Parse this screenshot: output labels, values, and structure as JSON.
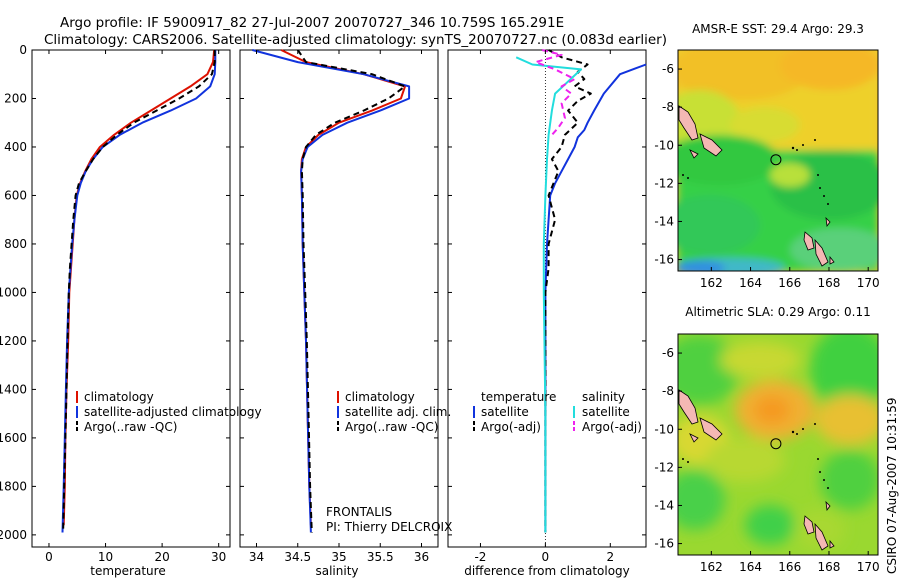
{
  "header": {
    "line1": "Argo profile: IF 5900917_82 27-Jul-2007 20070727_346 10.759S 165.291E",
    "line2": "Climatology: CARS2006. Satellite-adjusted climatology: synTS_20070727.nc (0.083d earlier)"
  },
  "side_label": "CSIRO 07-Aug-2007 10:31:59",
  "colors": {
    "clim": "#dd1100",
    "sat": "#1133dd",
    "argo": "#000000",
    "sal_sat": "#22dddd",
    "sal_argo": "#ee22ee",
    "coast": "#f4b8b4",
    "ring": "#000000"
  },
  "profile_panels": {
    "ylim": [
      2050,
      0
    ],
    "yticks": [
      0,
      200,
      400,
      600,
      800,
      1000,
      1200,
      1400,
      1600,
      1800,
      2000
    ],
    "temperature": {
      "xlabel": "temperature",
      "xlim": [
        -3,
        32
      ],
      "xticks": [
        0,
        10,
        20,
        30
      ],
      "legend": [
        "climatology",
        "satellite-adjusted climatology",
        "Argo(..raw -QC)"
      ]
    },
    "salinity": {
      "xlabel": "salinity",
      "xlim": [
        33.8,
        36.2
      ],
      "xticks": [
        "34",
        "34.5",
        "35",
        "35.5",
        "36"
      ],
      "legend": [
        "climatology",
        "satellite adj. clim.",
        "Argo(..raw -QC)"
      ],
      "frontalis": "FRONTALIS",
      "pi": "PI: Thierry DELCROIX"
    },
    "difference": {
      "xlabel": "difference from climatology",
      "xlim": [
        -3,
        3.1
      ],
      "xticks": [
        "-2",
        "0",
        "2"
      ],
      "legend_temp_title": "temperature",
      "legend_temp": [
        "satellite",
        "Argo(-adj)"
      ],
      "legend_sal_title": "salinity",
      "legend_sal": [
        "satellite",
        "Argo(-adj)"
      ]
    }
  },
  "map_panels": {
    "sst_title": "AMSR-E SST: 29.4 Argo: 29.3",
    "sla_title": "Altimetric SLA: 0.29 Argo: 0.11",
    "xlim": [
      160.3,
      170.5
    ],
    "ylim": [
      -16.6,
      -5.0
    ],
    "xticks": [
      "162",
      "164",
      "166",
      "168",
      "170"
    ],
    "yticks": [
      "-6",
      "-8",
      "-10",
      "-12",
      "-14",
      "-16"
    ],
    "float_position": {
      "lon": 165.291,
      "lat": -10.759
    }
  },
  "chart_data": [
    {
      "type": "line",
      "title": "",
      "xlabel": "temperature",
      "ylabel": "",
      "xlim": [
        -3,
        32
      ],
      "ylim": [
        2050,
        0
      ],
      "series": [
        {
          "name": "climatology",
          "x": [
            29.2,
            29.0,
            28.0,
            25.0,
            21.5,
            18.0,
            14.5,
            11.5,
            9.0,
            7.5,
            6.4,
            5.5,
            4.9,
            4.5,
            4.2,
            3.9,
            3.6,
            3.4,
            3.1,
            2.9,
            2.8,
            2.6
          ],
          "y": [
            0,
            50,
            100,
            150,
            200,
            250,
            300,
            350,
            400,
            450,
            500,
            550,
            600,
            700,
            800,
            900,
            1000,
            1200,
            1400,
            1600,
            1800,
            1960
          ]
        },
        {
          "name": "satellite-adjusted climatology",
          "x": [
            29.4,
            29.4,
            29.3,
            28.5,
            26.0,
            21.5,
            16.5,
            12.5,
            9.5,
            7.8,
            6.5,
            5.6,
            5.0,
            4.5,
            4.1,
            3.8,
            3.5,
            3.2,
            3.0,
            2.8,
            2.6,
            2.4
          ],
          "y": [
            0,
            50,
            100,
            150,
            200,
            250,
            300,
            350,
            400,
            450,
            500,
            550,
            600,
            700,
            800,
            900,
            1000,
            1200,
            1400,
            1600,
            1800,
            1990
          ]
        },
        {
          "name": "Argo(..raw -QC)",
          "x": [
            29.3,
            29.3,
            28.8,
            26.5,
            23.0,
            19.0,
            15.0,
            12.0,
            9.5,
            7.8,
            6.5,
            5.3,
            4.7,
            4.3,
            4.0,
            3.7,
            3.5,
            3.3,
            3.1,
            2.9,
            2.7,
            2.5
          ],
          "y": [
            0,
            50,
            100,
            150,
            200,
            250,
            300,
            350,
            400,
            450,
            500,
            550,
            600,
            700,
            800,
            900,
            1000,
            1200,
            1400,
            1600,
            1800,
            1990
          ]
        }
      ]
    },
    {
      "type": "line",
      "title": "",
      "xlabel": "salinity",
      "ylabel": "",
      "xlim": [
        33.8,
        36.2
      ],
      "ylim": [
        2050,
        0
      ],
      "series": [
        {
          "name": "climatology",
          "x": [
            34.3,
            34.6,
            35.3,
            35.8,
            35.75,
            35.4,
            35.0,
            34.75,
            34.6,
            34.55,
            34.54,
            34.55,
            34.56,
            34.58,
            34.6,
            34.62,
            34.64,
            34.66
          ],
          "y": [
            0,
            50,
            100,
            150,
            200,
            250,
            300,
            350,
            400,
            450,
            500,
            600,
            800,
            1000,
            1200,
            1500,
            1800,
            1960
          ]
        },
        {
          "name": "satellite adj. clim.",
          "x": [
            33.95,
            34.5,
            35.3,
            35.85,
            35.85,
            35.5,
            35.1,
            34.8,
            34.62,
            34.56,
            34.54,
            34.55,
            34.56,
            34.58,
            34.6,
            34.62,
            34.64,
            34.66
          ],
          "y": [
            0,
            50,
            100,
            150,
            200,
            250,
            300,
            350,
            400,
            450,
            500,
            600,
            800,
            1000,
            1200,
            1500,
            1800,
            1990
          ]
        },
        {
          "name": "Argo(..raw -QC)",
          "x": [
            34.5,
            34.6,
            35.4,
            35.8,
            35.6,
            35.3,
            34.95,
            34.72,
            34.6,
            34.56,
            34.55,
            34.56,
            34.57,
            34.59,
            34.61,
            34.63,
            34.65,
            34.67
          ],
          "y": [
            0,
            50,
            100,
            150,
            200,
            250,
            300,
            350,
            400,
            450,
            500,
            600,
            800,
            1000,
            1200,
            1500,
            1800,
            1990
          ]
        }
      ]
    },
    {
      "type": "line",
      "title": "",
      "xlabel": "difference from climatology",
      "ylabel": "",
      "xlim": [
        -3,
        3.1
      ],
      "ylim": [
        2050,
        0
      ],
      "series": [
        {
          "name": "temperature satellite",
          "x": [
            3.1,
            2.3,
            1.8,
            1.5,
            1.3,
            1.2,
            1.0,
            0.9,
            0.7,
            0.5,
            0.3,
            0.15,
            0.1,
            0.05,
            0.0,
            0.0,
            0.0
          ],
          "y": [
            60,
            100,
            180,
            250,
            300,
            330,
            360,
            400,
            450,
            500,
            550,
            600,
            700,
            800,
            1000,
            1500,
            1990
          ]
        },
        {
          "name": "temperature Argo(-adj)",
          "x": [
            0.1,
            0.5,
            1.3,
            1.0,
            1.2,
            0.9,
            1.4,
            1.0,
            0.7,
            1.0,
            0.6,
            0.5,
            0.2,
            0.4,
            0.1,
            0.3,
            0.1,
            0.1,
            0.0,
            0.0,
            0.0
          ],
          "y": [
            0,
            30,
            60,
            90,
            120,
            150,
            180,
            210,
            250,
            300,
            350,
            400,
            450,
            500,
            600,
            700,
            800,
            900,
            1000,
            1500,
            1990
          ]
        },
        {
          "name": "salinity satellite",
          "x": [
            -0.9,
            -0.4,
            1.1,
            0.7,
            0.3,
            0.2,
            0.1,
            0.05,
            0.0,
            -0.05,
            -0.05,
            0.0,
            0.0
          ],
          "y": [
            30,
            60,
            80,
            130,
            180,
            250,
            350,
            450,
            600,
            800,
            1000,
            1500,
            1990
          ]
        },
        {
          "name": "salinity Argo(-adj)",
          "x": [
            -0.1,
            0.5,
            -0.3,
            0.3,
            0.9,
            0.5,
            0.8,
            0.5,
            0.6,
            0.4,
            0.2
          ],
          "y": [
            0,
            20,
            50,
            80,
            120,
            150,
            180,
            220,
            280,
            320,
            350
          ]
        }
      ]
    }
  ]
}
